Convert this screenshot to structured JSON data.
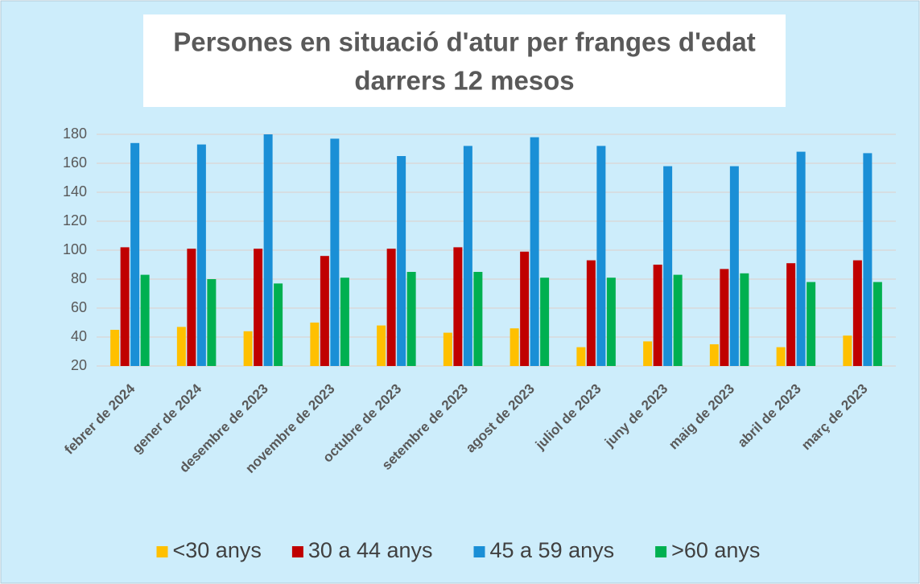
{
  "chart_data": {
    "type": "bar",
    "title": [
      "Persones en situació d'atur per franges d'edat",
      "darrers 12 mesos"
    ],
    "categories": [
      "febrer de 2024",
      "gener de 2024",
      "desembre de 2023",
      "novembre de 2023",
      "octubre de 2023",
      "setembre de 2023",
      "agost de 2023",
      "juliol de 2023",
      "juny de 2023",
      "maig de 2023",
      "abril de 2023",
      "març de 2023"
    ],
    "series": [
      {
        "name": "<30 anys",
        "color": "#ffc000",
        "values": [
          45,
          47,
          44,
          50,
          48,
          43,
          46,
          33,
          37,
          35,
          33,
          41
        ]
      },
      {
        "name": "30 a 44 anys",
        "color": "#c00000",
        "values": [
          102,
          101,
          101,
          96,
          101,
          102,
          99,
          93,
          90,
          87,
          91,
          93
        ]
      },
      {
        "name": "45 a 59 anys",
        "color": "#1a8fd6",
        "values": [
          174,
          173,
          180,
          177,
          165,
          172,
          178,
          172,
          158,
          158,
          168,
          167
        ]
      },
      {
        "name": ">60 anys",
        "color": "#00b050",
        "values": [
          83,
          80,
          77,
          81,
          85,
          85,
          81,
          81,
          83,
          84,
          78,
          78
        ]
      }
    ],
    "ylim": [
      20,
      180
    ],
    "yticks": [
      20,
      40,
      60,
      80,
      100,
      120,
      140,
      160,
      180
    ],
    "grid": true,
    "legend": "bottom"
  }
}
